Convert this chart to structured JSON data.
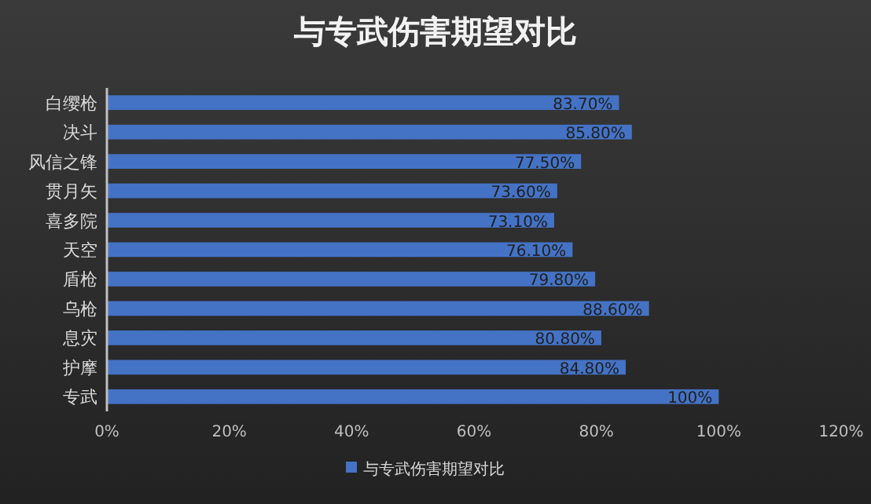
{
  "chart_data": {
    "type": "bar",
    "orientation": "horizontal",
    "title": "与专武伤害期望对比",
    "categories": [
      "白缨枪",
      "决斗",
      "风信之锋",
      "贯月矢",
      "喜多院",
      "天空",
      "盾枪",
      "乌枪",
      "息灾",
      "护摩",
      "专武"
    ],
    "series": [
      {
        "name": "与专武伤害期望对比",
        "color": "#4472c4",
        "values": [
          83.7,
          85.8,
          77.5,
          73.6,
          73.1,
          76.1,
          79.8,
          88.6,
          80.8,
          84.8,
          100
        ],
        "value_labels": [
          "83.70%",
          "85.80%",
          "77.50%",
          "73.60%",
          "73.10%",
          "76.10%",
          "79.80%",
          "88.60%",
          "80.80%",
          "84.80%",
          "100%"
        ]
      }
    ],
    "xlim": [
      0,
      120
    ],
    "xticks": [
      {
        "value": 0,
        "label": "0%"
      },
      {
        "value": 20,
        "label": "20%"
      },
      {
        "value": 40,
        "label": "40%"
      },
      {
        "value": 60,
        "label": "60%"
      },
      {
        "value": 80,
        "label": "80%"
      },
      {
        "value": 100,
        "label": "100%"
      },
      {
        "value": 120,
        "label": "120%"
      }
    ],
    "grid": false,
    "legend": "bottom"
  }
}
